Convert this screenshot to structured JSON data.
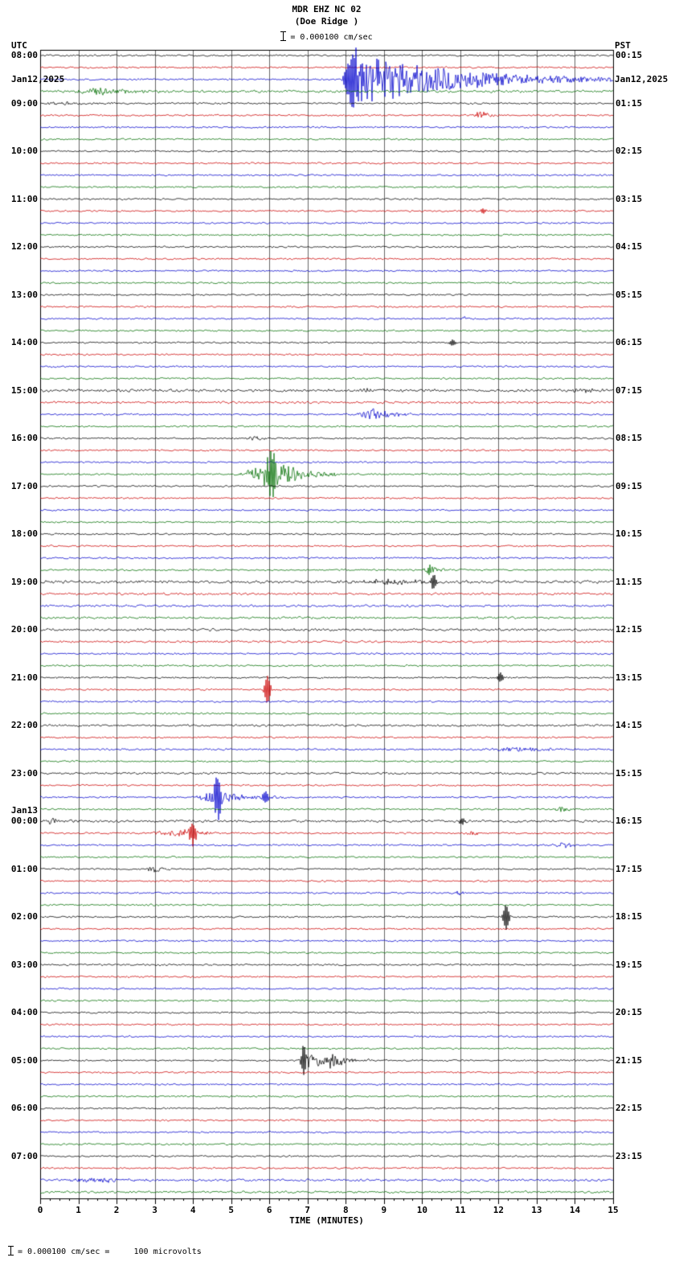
{
  "header": {
    "title_line1": "MDR EHZ NC 02",
    "title_line2": "(Doe Ridge )",
    "scale_text": "= 0.000100 cm/sec",
    "left_tz": "UTC",
    "left_date": "Jan12,2025",
    "right_tz": "PST",
    "right_date": "Jan12,2025"
  },
  "footer": {
    "xlabel": "TIME (MINUTES)",
    "scale_note": "= 0.000100 cm/sec =     100 microvolts"
  },
  "chart_data": {
    "type": "line",
    "title": "MDR EHZ NC 02 (Doe Ridge) helicorder",
    "x_min": 0,
    "x_max": 15,
    "x_ticks": [
      0,
      1,
      2,
      3,
      4,
      5,
      6,
      7,
      8,
      9,
      10,
      11,
      12,
      13,
      14,
      15
    ],
    "x_minor_step": 0.25,
    "rows": 96,
    "minutes_per_row": 15,
    "base_noise_amp": 1.2,
    "colors": {
      "trace_cycle": [
        "#000000",
        "#cc0000",
        "#0000cc",
        "#006e00"
      ],
      "grid": "#666666",
      "border": "#000000"
    },
    "left_labels": [
      {
        "row": 0,
        "label": "08:00"
      },
      {
        "row": 4,
        "label": "09:00"
      },
      {
        "row": 8,
        "label": "10:00"
      },
      {
        "row": 12,
        "label": "11:00"
      },
      {
        "row": 16,
        "label": "12:00"
      },
      {
        "row": 20,
        "label": "13:00"
      },
      {
        "row": 24,
        "label": "14:00"
      },
      {
        "row": 28,
        "label": "15:00"
      },
      {
        "row": 32,
        "label": "16:00"
      },
      {
        "row": 36,
        "label": "17:00"
      },
      {
        "row": 40,
        "label": "18:00"
      },
      {
        "row": 44,
        "label": "19:00"
      },
      {
        "row": 48,
        "label": "20:00"
      },
      {
        "row": 52,
        "label": "21:00"
      },
      {
        "row": 56,
        "label": "22:00"
      },
      {
        "row": 60,
        "label": "23:00"
      },
      {
        "row": 64,
        "label": "00:00",
        "label2": "Jan13"
      },
      {
        "row": 68,
        "label": "01:00"
      },
      {
        "row": 72,
        "label": "02:00"
      },
      {
        "row": 76,
        "label": "03:00"
      },
      {
        "row": 80,
        "label": "04:00"
      },
      {
        "row": 84,
        "label": "05:00"
      },
      {
        "row": 88,
        "label": "06:00"
      },
      {
        "row": 92,
        "label": "07:00"
      }
    ],
    "right_labels": [
      {
        "row": 0,
        "label": "00:15"
      },
      {
        "row": 4,
        "label": "01:15"
      },
      {
        "row": 8,
        "label": "02:15"
      },
      {
        "row": 12,
        "label": "03:15"
      },
      {
        "row": 16,
        "label": "04:15"
      },
      {
        "row": 20,
        "label": "05:15"
      },
      {
        "row": 24,
        "label": "06:15"
      },
      {
        "row": 28,
        "label": "07:15"
      },
      {
        "row": 32,
        "label": "08:15"
      },
      {
        "row": 36,
        "label": "09:15"
      },
      {
        "row": 40,
        "label": "10:15"
      },
      {
        "row": 44,
        "label": "11:15"
      },
      {
        "row": 48,
        "label": "12:15"
      },
      {
        "row": 52,
        "label": "13:15"
      },
      {
        "row": 56,
        "label": "14:15"
      },
      {
        "row": 60,
        "label": "15:15"
      },
      {
        "row": 64,
        "label": "16:15"
      },
      {
        "row": 68,
        "label": "17:15"
      },
      {
        "row": 72,
        "label": "18:15"
      },
      {
        "row": 76,
        "label": "19:15"
      },
      {
        "row": 80,
        "label": "20:15"
      },
      {
        "row": 84,
        "label": "21:15"
      },
      {
        "row": 88,
        "label": "22:15"
      },
      {
        "row": 92,
        "label": "23:15"
      }
    ],
    "row_noise_overrides": {
      "3": 1.8,
      "28": 2.0,
      "29": 1.6,
      "44": 2.0,
      "45": 1.6,
      "46": 1.6,
      "47": 1.6,
      "48": 1.7,
      "49": 1.6,
      "56": 1.5,
      "60": 1.5,
      "64": 1.7,
      "94": 1.7,
      "95": 1.5
    },
    "events": [
      {
        "row": 2,
        "kind": "burst",
        "start": 7.95,
        "peak": 8.4,
        "end": 15.0,
        "amp": 32
      },
      {
        "row": 2,
        "kind": "spike",
        "pos": 8.2,
        "amp": 36,
        "width": 0.3
      },
      {
        "row": 3,
        "kind": "burst",
        "start": 0.6,
        "peak": 1.6,
        "end": 3.6,
        "amp": 5
      },
      {
        "row": 4,
        "kind": "burst",
        "start": 0.0,
        "peak": 0.4,
        "end": 2.6,
        "amp": 2.5
      },
      {
        "row": 5,
        "kind": "burst",
        "start": 11.3,
        "peak": 11.5,
        "end": 12.0,
        "amp": 7
      },
      {
        "row": 13,
        "kind": "spike",
        "pos": 11.6,
        "amp": 3
      },
      {
        "row": 22,
        "kind": "burst",
        "start": 10.9,
        "peak": 11.1,
        "end": 11.4,
        "amp": 2.5
      },
      {
        "row": 24,
        "kind": "spike",
        "pos": 10.8,
        "amp": 4
      },
      {
        "row": 28,
        "kind": "burst",
        "start": 8.2,
        "peak": 8.5,
        "end": 9.2,
        "amp": 3
      },
      {
        "row": 28,
        "kind": "burst",
        "start": 13.6,
        "peak": 14.2,
        "end": 15.0,
        "amp": 3
      },
      {
        "row": 30,
        "kind": "burst",
        "start": 8.2,
        "peak": 8.7,
        "end": 9.9,
        "amp": 8
      },
      {
        "row": 32,
        "kind": "burst",
        "start": 5.2,
        "peak": 5.6,
        "end": 6.1,
        "amp": 3
      },
      {
        "row": 35,
        "kind": "burst",
        "start": 5.1,
        "peak": 6.0,
        "end": 7.8,
        "amp": 20
      },
      {
        "row": 35,
        "kind": "spike",
        "pos": 6.05,
        "amp": 34
      },
      {
        "row": 43,
        "kind": "burst",
        "start": 9.9,
        "peak": 10.2,
        "end": 10.7,
        "amp": 7
      },
      {
        "row": 44,
        "kind": "burst",
        "start": 7.8,
        "peak": 9.0,
        "end": 11.3,
        "amp": 4
      },
      {
        "row": 44,
        "kind": "spike",
        "pos": 10.3,
        "amp": 9
      },
      {
        "row": 52,
        "kind": "spike",
        "pos": 12.05,
        "amp": 6
      },
      {
        "row": 53,
        "kind": "spike",
        "pos": 5.95,
        "amp": 18
      },
      {
        "row": 58,
        "kind": "burst",
        "start": 11.3,
        "peak": 12.5,
        "end": 14.3,
        "amp": 3.5
      },
      {
        "row": 62,
        "kind": "burst",
        "start": 3.9,
        "peak": 4.6,
        "end": 6.4,
        "amp": 9
      },
      {
        "row": 62,
        "kind": "spike",
        "pos": 4.65,
        "amp": 26
      },
      {
        "row": 62,
        "kind": "spike",
        "pos": 5.9,
        "amp": 8
      },
      {
        "row": 63,
        "kind": "burst",
        "start": 13.3,
        "peak": 13.7,
        "end": 14.1,
        "amp": 5
      },
      {
        "row": 64,
        "kind": "burst",
        "start": 0.0,
        "peak": 0.3,
        "end": 1.3,
        "amp": 4
      },
      {
        "row": 64,
        "kind": "spike",
        "pos": 11.05,
        "amp": 4
      },
      {
        "row": 65,
        "kind": "burst",
        "start": 2.3,
        "peak": 4.0,
        "end": 4.9,
        "amp": 5
      },
      {
        "row": 65,
        "kind": "spike",
        "pos": 4.0,
        "amp": 13
      },
      {
        "row": 65,
        "kind": "burst",
        "start": 11.0,
        "peak": 11.3,
        "end": 11.7,
        "amp": 3
      },
      {
        "row": 66,
        "kind": "burst",
        "start": 13.2,
        "peak": 13.7,
        "end": 14.3,
        "amp": 4
      },
      {
        "row": 68,
        "kind": "burst",
        "start": 2.6,
        "peak": 3.0,
        "end": 3.5,
        "amp": 5
      },
      {
        "row": 70,
        "kind": "burst",
        "start": 10.6,
        "peak": 10.9,
        "end": 11.3,
        "amp": 3
      },
      {
        "row": 72,
        "kind": "spike",
        "pos": 12.2,
        "amp": 16
      },
      {
        "row": 84,
        "kind": "burst",
        "start": 6.7,
        "peak": 7.0,
        "end": 8.7,
        "amp": 10
      },
      {
        "row": 84,
        "kind": "spike",
        "pos": 6.9,
        "amp": 16
      },
      {
        "row": 84,
        "kind": "burst",
        "start": 7.4,
        "peak": 7.6,
        "end": 8.4,
        "amp": 8
      },
      {
        "row": 94,
        "kind": "burst",
        "start": 0.0,
        "peak": 1.4,
        "end": 3.3,
        "amp": 3
      }
    ]
  }
}
